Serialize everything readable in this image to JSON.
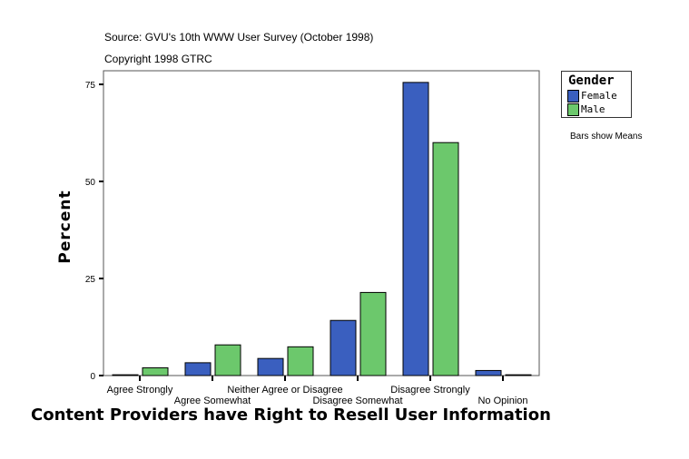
{
  "header": {
    "source": "Source: GVU's 10th WWW User Survey (October 1998)",
    "copyright": "Copyright 1998 GTRC"
  },
  "note": "Bars show Means",
  "chart_data": {
    "type": "bar",
    "title": "",
    "xlabel": "Content Providers have Right to Resell User Information",
    "ylabel": "Percent",
    "ylim": [
      0,
      79
    ],
    "yticks": [
      0,
      25,
      50,
      75
    ],
    "grid": false,
    "legend_title": "Gender",
    "legend_position": "right",
    "categories": [
      "Agree Strongly",
      "Agree Somewhat",
      "Neither Agree or Disagree",
      "Disagree Somewhat",
      "Disagree Strongly",
      "No Opinion"
    ],
    "series": [
      {
        "name": "Female",
        "color": "#3a5fbf",
        "values": [
          0.2,
          3.3,
          4.4,
          14.2,
          75.5,
          1.3
        ]
      },
      {
        "name": "Male",
        "color": "#6cc86c",
        "values": [
          2.0,
          7.9,
          7.4,
          21.4,
          60.0,
          0.2
        ]
      }
    ]
  }
}
